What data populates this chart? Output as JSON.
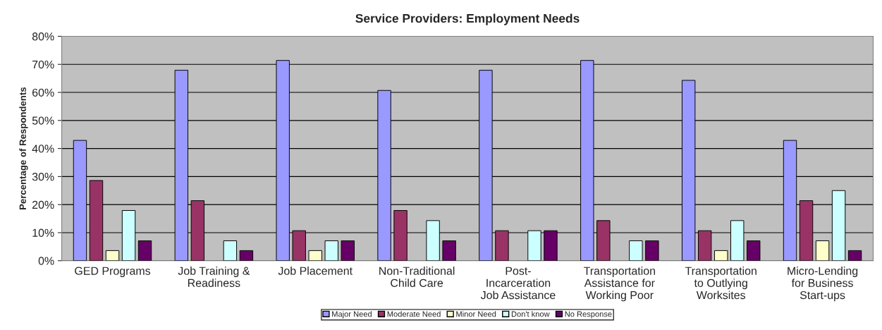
{
  "chart_data": {
    "type": "bar",
    "title": "Service Providers: Employment Needs",
    "ylabel": "Percentage of Respondents",
    "categories": [
      "GED Programs",
      "Job Training &\nReadiness",
      "Job Placement",
      "Non-Traditional\nChild Care",
      "Post-\nIncarceration\nJob Assistance",
      "Transportation\nAssistance for\nWorking Poor",
      "Transportation\nto Outlying\nWorksites",
      "Micro-Lending\nfor Business\nStart-ups"
    ],
    "series": [
      {
        "name": "Major Need",
        "color": "#9999ff",
        "values": [
          42.9,
          67.9,
          71.4,
          60.7,
          67.9,
          71.4,
          64.3,
          42.9
        ]
      },
      {
        "name": "Moderate Need",
        "color": "#993366",
        "values": [
          28.6,
          21.4,
          10.7,
          17.9,
          10.7,
          14.3,
          10.7,
          21.4
        ]
      },
      {
        "name": "Minor Need",
        "color": "#ffffcc",
        "values": [
          3.6,
          0,
          3.6,
          0,
          0,
          0,
          3.6,
          7.1
        ]
      },
      {
        "name": "Don't know",
        "color": "#ccffff",
        "values": [
          17.9,
          7.1,
          7.1,
          14.3,
          10.7,
          7.1,
          14.3,
          25.0
        ]
      },
      {
        "name": "No Response",
        "color": "#660066",
        "values": [
          7.1,
          3.6,
          7.1,
          7.1,
          10.7,
          7.1,
          7.1,
          3.6
        ]
      }
    ],
    "ylim": [
      0,
      80
    ],
    "yticks": [
      {
        "value": 0,
        "label": "0%"
      },
      {
        "value": 10,
        "label": "10%"
      },
      {
        "value": 20,
        "label": "20%"
      },
      {
        "value": 30,
        "label": "30%"
      },
      {
        "value": 40,
        "label": "40%"
      },
      {
        "value": 50,
        "label": "50%"
      },
      {
        "value": 60,
        "label": "60%"
      },
      {
        "value": 70,
        "label": "70%"
      },
      {
        "value": 80,
        "label": "80%"
      }
    ],
    "grid": "y",
    "legend": "bottom"
  }
}
